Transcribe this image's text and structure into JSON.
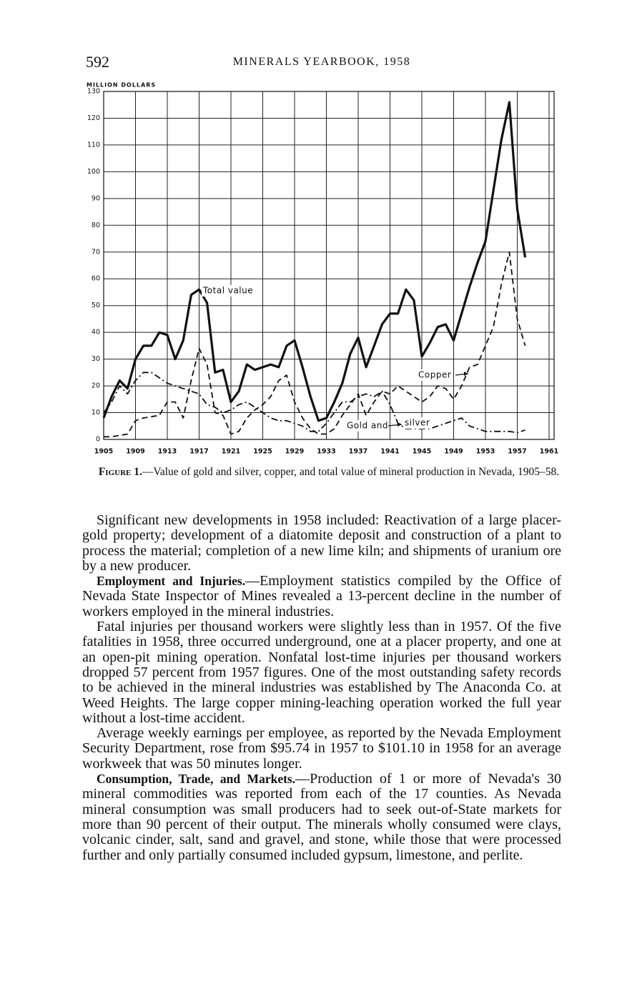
{
  "header": {
    "page_number": "592",
    "title": "MINERALS YEARBOOK, 1958"
  },
  "chart_data": {
    "type": "line",
    "y_axis_label": "MILLION DOLLARS",
    "x": [
      1905,
      1906,
      1907,
      1908,
      1909,
      1910,
      1911,
      1912,
      1913,
      1914,
      1915,
      1916,
      1917,
      1918,
      1919,
      1920,
      1921,
      1922,
      1923,
      1924,
      1925,
      1926,
      1927,
      1928,
      1929,
      1930,
      1931,
      1932,
      1933,
      1934,
      1935,
      1936,
      1937,
      1938,
      1939,
      1940,
      1941,
      1942,
      1943,
      1944,
      1945,
      1946,
      1947,
      1948,
      1949,
      1950,
      1951,
      1952,
      1953,
      1954,
      1955,
      1956,
      1957,
      1958
    ],
    "series": [
      {
        "labels": [
          "Total value"
        ],
        "color": "#111111",
        "style": "solid",
        "values": [
          8,
          16,
          22,
          19,
          30,
          35,
          35,
          40,
          39,
          30,
          37,
          54,
          56,
          51,
          25,
          26,
          14,
          18,
          28,
          26,
          27,
          28,
          27,
          35,
          37,
          27,
          16,
          7,
          8,
          14,
          21,
          32,
          38,
          27,
          35,
          43,
          47,
          47,
          56,
          52,
          31,
          36,
          42,
          43,
          37,
          47,
          57,
          66,
          74,
          93,
          112,
          126,
          86,
          68
        ]
      },
      {
        "labels": [
          "Copper"
        ],
        "color": "#111111",
        "style": "dashed",
        "values": [
          1,
          1,
          1.5,
          2,
          7,
          8,
          8.5,
          9,
          14,
          14,
          8,
          22,
          34,
          28,
          10,
          9,
          2,
          3,
          8,
          11,
          13,
          16,
          22,
          24,
          14,
          8,
          4,
          2,
          2,
          4,
          9,
          13,
          17,
          9,
          14,
          18,
          17,
          20,
          18,
          16,
          14,
          16,
          20,
          19,
          15,
          20,
          27,
          28,
          35,
          42,
          58,
          70,
          45,
          35
        ]
      },
      {
        "labels": [
          "Gold and",
          "silver"
        ],
        "color": "#111111",
        "style": "dashdot",
        "values": [
          10,
          14,
          20,
          17,
          22,
          25,
          25,
          23,
          21,
          20,
          19,
          18,
          17,
          13,
          12,
          10,
          11,
          13,
          14,
          12,
          10,
          8,
          7,
          7,
          6,
          5,
          3,
          3,
          6,
          10,
          14,
          14,
          16,
          17,
          16,
          18,
          13,
          6,
          4,
          4,
          4,
          4,
          5,
          6,
          7,
          8,
          5,
          4,
          3,
          3,
          3,
          3,
          2.5,
          3.5
        ]
      }
    ],
    "xlim": [
      1905,
      1961
    ],
    "xticks": [
      1905,
      1909,
      1913,
      1917,
      1921,
      1925,
      1929,
      1933,
      1937,
      1941,
      1945,
      1949,
      1953,
      1957,
      1961
    ],
    "ylim": [
      0,
      130
    ],
    "yticks": [
      0,
      10,
      20,
      30,
      40,
      50,
      60,
      70,
      80,
      90,
      100,
      110,
      120,
      130
    ],
    "grid": true
  },
  "caption": {
    "label": "Figure 1.",
    "text": "—Value of gold and silver, copper, and total value of mineral production in Nevada, 1905–58."
  },
  "paragraphs": [
    {
      "text": "Significant new developments in 1958 included: Reactivation of a large placer-gold property; development of a diatomite deposit and construction of a plant to process the material; completion of a new lime kiln; and shipments of uranium ore by a new producer."
    },
    {
      "heading": "Employment and Injuries.",
      "text": "—Employment statistics compiled by the Office of Nevada State Inspector of Mines revealed a 13-percent decline in the number of workers employed in the mineral industries."
    },
    {
      "text": "Fatal injuries per thousand workers were slightly less than in 1957. Of the five fatalities in 1958, three occurred underground, one at a placer property, and one at an open-pit mining operation. Nonfatal lost-time injuries per thousand workers dropped 57 percent from 1957 figures. One of the most outstanding safety records to be achieved in the mineral industries was established by The Anaconda Co. at Weed Heights. The large copper mining-leaching operation worked the full year without a lost-time accident."
    },
    {
      "text": "Average weekly earnings per employee, as reported by the Nevada Employment Security Department, rose from $95.74 in 1957 to $101.10 in 1958 for an average workweek that was 50 minutes longer."
    },
    {
      "heading": "Consumption, Trade, and Markets.",
      "text": "—Production of 1 or more of Nevada's 30 mineral commodities was reported from each of the 17 counties. As Nevada mineral consumption was small producers had to seek out-of-State markets for more than 90 percent of their output. The minerals wholly consumed were clays, volcanic cinder, salt, sand and gravel, and stone, while those that were processed further and only partially consumed included gypsum, limestone, and perlite."
    }
  ]
}
